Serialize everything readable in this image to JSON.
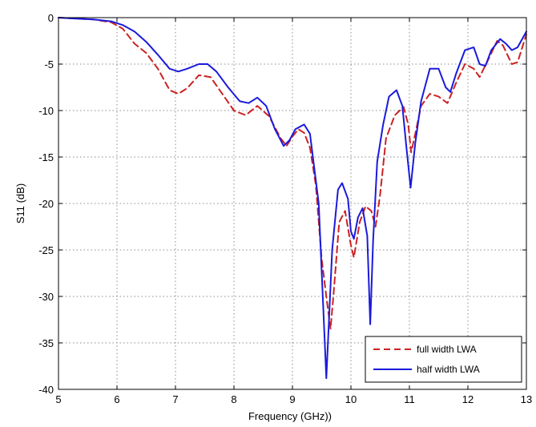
{
  "chart_data": {
    "type": "line",
    "title": "",
    "xlabel": "Frequency (GHz))",
    "ylabel": "S11 (dB)",
    "xlim": [
      5,
      13
    ],
    "ylim": [
      -40,
      0
    ],
    "xticks": [
      5,
      6,
      7,
      8,
      9,
      10,
      11,
      12,
      13
    ],
    "yticks": [
      0,
      -5,
      -10,
      -15,
      -20,
      -25,
      -30,
      -35,
      -40
    ],
    "grid": true,
    "legend_position": "bottom-right",
    "series": [
      {
        "name": "full width LWA",
        "color": "#cc2222",
        "line_style": "dashed",
        "x": [
          5.0,
          5.3,
          5.6,
          5.9,
          6.1,
          6.3,
          6.5,
          6.7,
          6.9,
          7.05,
          7.2,
          7.4,
          7.6,
          7.8,
          8.0,
          8.2,
          8.4,
          8.6,
          8.8,
          8.9,
          9.0,
          9.1,
          9.2,
          9.3,
          9.4,
          9.5,
          9.58,
          9.65,
          9.7,
          9.8,
          9.9,
          10.0,
          10.05,
          10.15,
          10.25,
          10.35,
          10.42,
          10.5,
          10.6,
          10.75,
          10.9,
          10.98,
          11.03,
          11.1,
          11.2,
          11.35,
          11.5,
          11.65,
          11.8,
          11.95,
          12.1,
          12.2,
          12.35,
          12.5,
          12.6,
          12.75,
          12.85,
          13.0
        ],
        "y": [
          0,
          -0.1,
          -0.2,
          -0.5,
          -1.2,
          -2.8,
          -3.8,
          -5.5,
          -7.8,
          -8.2,
          -7.6,
          -6.2,
          -6.4,
          -8.2,
          -10.0,
          -10.5,
          -9.5,
          -10.6,
          -13.0,
          -13.8,
          -12.8,
          -12.0,
          -12.4,
          -14.0,
          -18.0,
          -26.0,
          -30.0,
          -33.5,
          -30.0,
          -22.0,
          -20.8,
          -24.5,
          -25.8,
          -22.0,
          -20.3,
          -20.8,
          -22.5,
          -19.0,
          -13.0,
          -10.5,
          -9.6,
          -11.5,
          -14.5,
          -12.5,
          -9.5,
          -8.2,
          -8.5,
          -9.2,
          -7.0,
          -5.0,
          -5.5,
          -6.4,
          -4.5,
          -2.5,
          -3.0,
          -5.0,
          -4.8,
          -1.8
        ]
      },
      {
        "name": "half width LWA",
        "color": "#1a1adb",
        "line_style": "solid",
        "x": [
          5.0,
          5.3,
          5.6,
          5.9,
          6.1,
          6.3,
          6.5,
          6.7,
          6.9,
          7.05,
          7.2,
          7.4,
          7.55,
          7.7,
          7.9,
          8.1,
          8.25,
          8.4,
          8.55,
          8.7,
          8.85,
          8.95,
          9.05,
          9.2,
          9.3,
          9.45,
          9.58,
          9.68,
          9.78,
          9.85,
          9.95,
          10.0,
          10.05,
          10.12,
          10.2,
          10.28,
          10.33,
          10.38,
          10.45,
          10.55,
          10.65,
          10.78,
          10.88,
          10.95,
          11.02,
          11.1,
          11.2,
          11.35,
          11.5,
          11.62,
          11.7,
          11.8,
          11.95,
          12.1,
          12.2,
          12.3,
          12.4,
          12.55,
          12.65,
          12.75,
          12.85,
          13.0
        ],
        "y": [
          0,
          -0.1,
          -0.2,
          -0.4,
          -0.8,
          -1.5,
          -2.6,
          -4.0,
          -5.5,
          -5.8,
          -5.5,
          -5.0,
          -5.0,
          -5.8,
          -7.5,
          -9.0,
          -9.2,
          -8.6,
          -9.5,
          -12.0,
          -13.8,
          -13.2,
          -12.0,
          -11.5,
          -12.5,
          -20.0,
          -38.8,
          -25.0,
          -18.5,
          -17.8,
          -19.5,
          -23.0,
          -23.8,
          -21.5,
          -20.5,
          -23.5,
          -33.0,
          -24.0,
          -15.5,
          -11.5,
          -8.5,
          -7.8,
          -9.5,
          -14.0,
          -18.3,
          -13.5,
          -9.0,
          -5.5,
          -5.5,
          -7.5,
          -8.0,
          -6.0,
          -3.5,
          -3.2,
          -5.0,
          -5.2,
          -3.5,
          -2.3,
          -2.8,
          -3.5,
          -3.2,
          -1.5
        ]
      }
    ]
  }
}
